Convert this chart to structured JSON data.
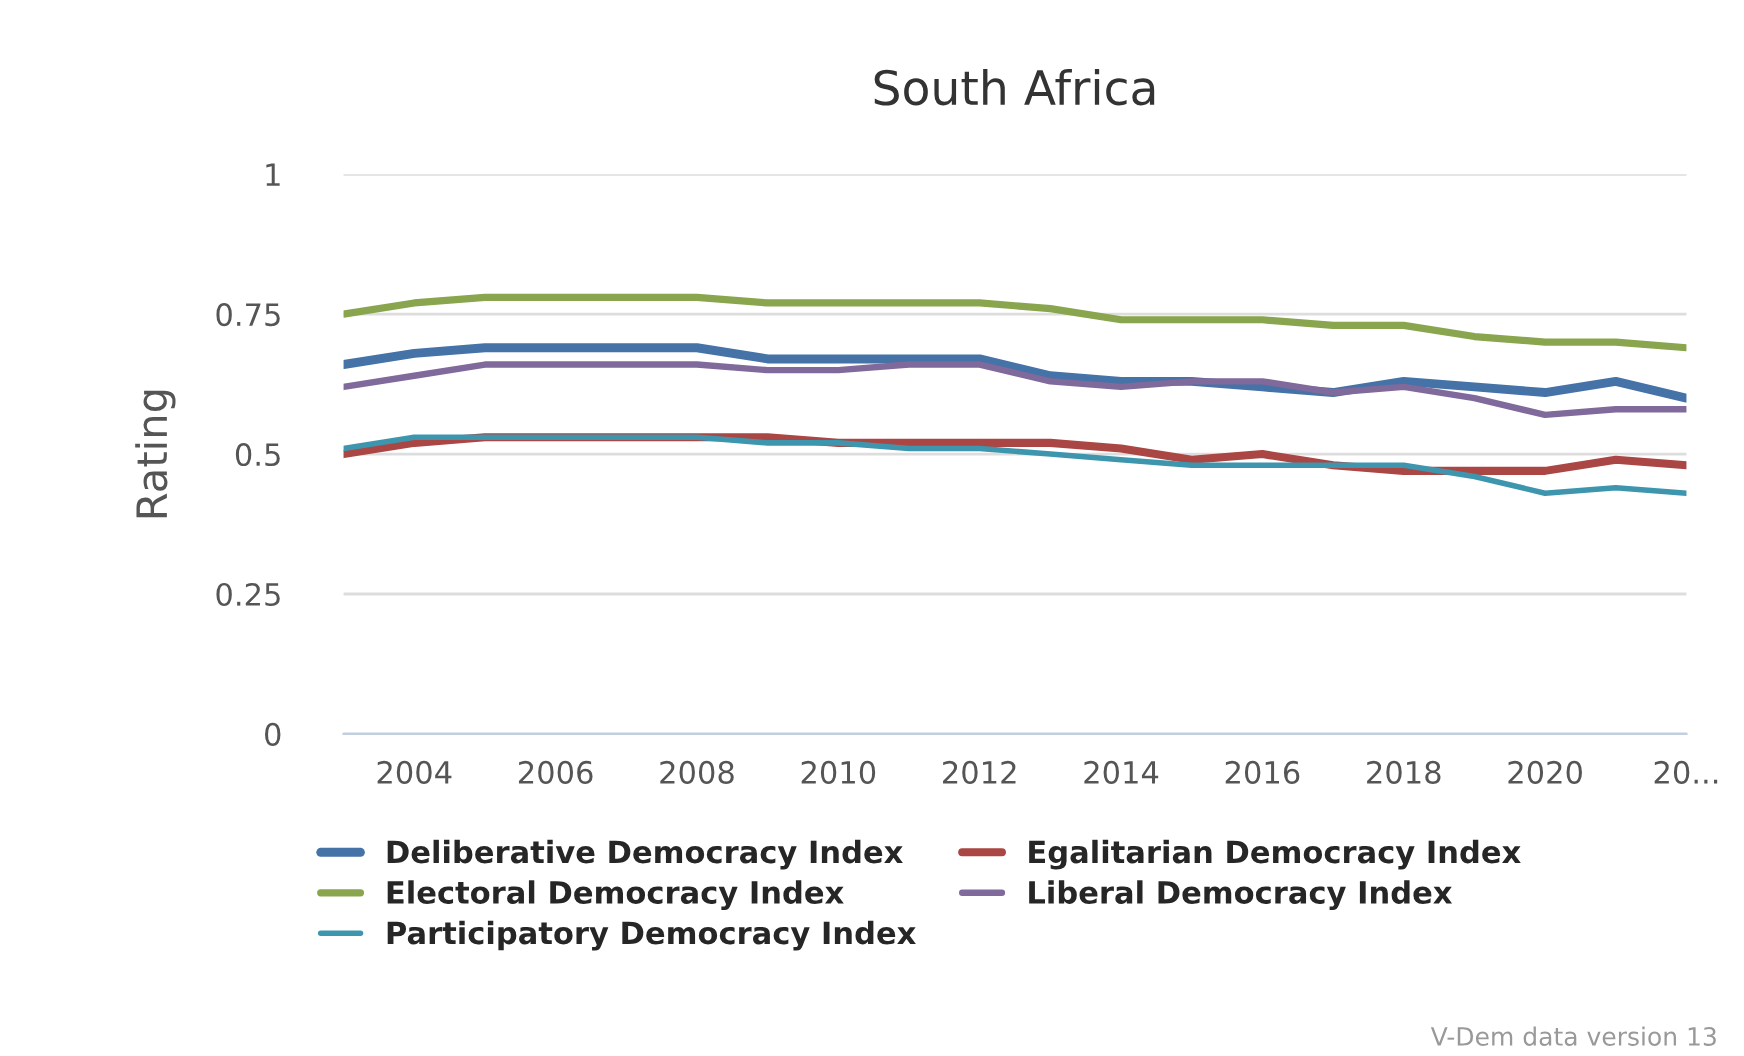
{
  "chart_data": {
    "type": "line",
    "title": "South Africa",
    "ylabel": "Rating",
    "x": [
      2003,
      2004,
      2005,
      2006,
      2007,
      2008,
      2009,
      2010,
      2011,
      2012,
      2013,
      2014,
      2015,
      2016,
      2017,
      2018,
      2019,
      2020,
      2021,
      2022
    ],
    "series": [
      {
        "name": "Deliberative Democracy Index",
        "color": "#4572a7",
        "values": [
          0.66,
          0.68,
          0.69,
          0.69,
          0.69,
          0.69,
          0.67,
          0.67,
          0.67,
          0.67,
          0.64,
          0.63,
          0.63,
          0.62,
          0.61,
          0.63,
          0.62,
          0.61,
          0.63,
          0.6
        ]
      },
      {
        "name": "Egalitarian Democracy Index",
        "color": "#aa4643",
        "values": [
          0.5,
          0.52,
          0.53,
          0.53,
          0.53,
          0.53,
          0.53,
          0.52,
          0.52,
          0.52,
          0.52,
          0.51,
          0.49,
          0.5,
          0.48,
          0.47,
          0.47,
          0.47,
          0.49,
          0.48
        ]
      },
      {
        "name": "Electoral Democracy Index",
        "color": "#89a54e",
        "values": [
          0.75,
          0.77,
          0.78,
          0.78,
          0.78,
          0.78,
          0.77,
          0.77,
          0.77,
          0.77,
          0.76,
          0.74,
          0.74,
          0.74,
          0.73,
          0.73,
          0.71,
          0.7,
          0.7,
          0.69
        ]
      },
      {
        "name": "Liberal Democracy Index",
        "color": "#80699b",
        "values": [
          0.62,
          0.64,
          0.66,
          0.66,
          0.66,
          0.66,
          0.65,
          0.65,
          0.66,
          0.66,
          0.63,
          0.62,
          0.63,
          0.63,
          0.61,
          0.62,
          0.6,
          0.57,
          0.58,
          0.58
        ]
      },
      {
        "name": "Participatory Democracy Index",
        "color": "#3d96ae",
        "values": [
          0.51,
          0.53,
          0.53,
          0.53,
          0.53,
          0.53,
          0.52,
          0.52,
          0.51,
          0.51,
          0.5,
          0.49,
          0.48,
          0.48,
          0.48,
          0.48,
          0.46,
          0.43,
          0.44,
          0.43
        ]
      }
    ],
    "xlim": [
      2003,
      2022
    ],
    "xticks": [
      2004,
      2006,
      2008,
      2010,
      2012,
      2014,
      2016,
      2018,
      2020,
      {
        "value": 2022,
        "label": "20..."
      }
    ],
    "ylim": [
      0,
      1
    ],
    "yticks": [
      0,
      0.25,
      0.5,
      0.75,
      1
    ],
    "grid": "y",
    "legend": "bottom",
    "marker": "none",
    "line_style": "solid",
    "annotations": [
      "V-Dem data version 13"
    ]
  }
}
